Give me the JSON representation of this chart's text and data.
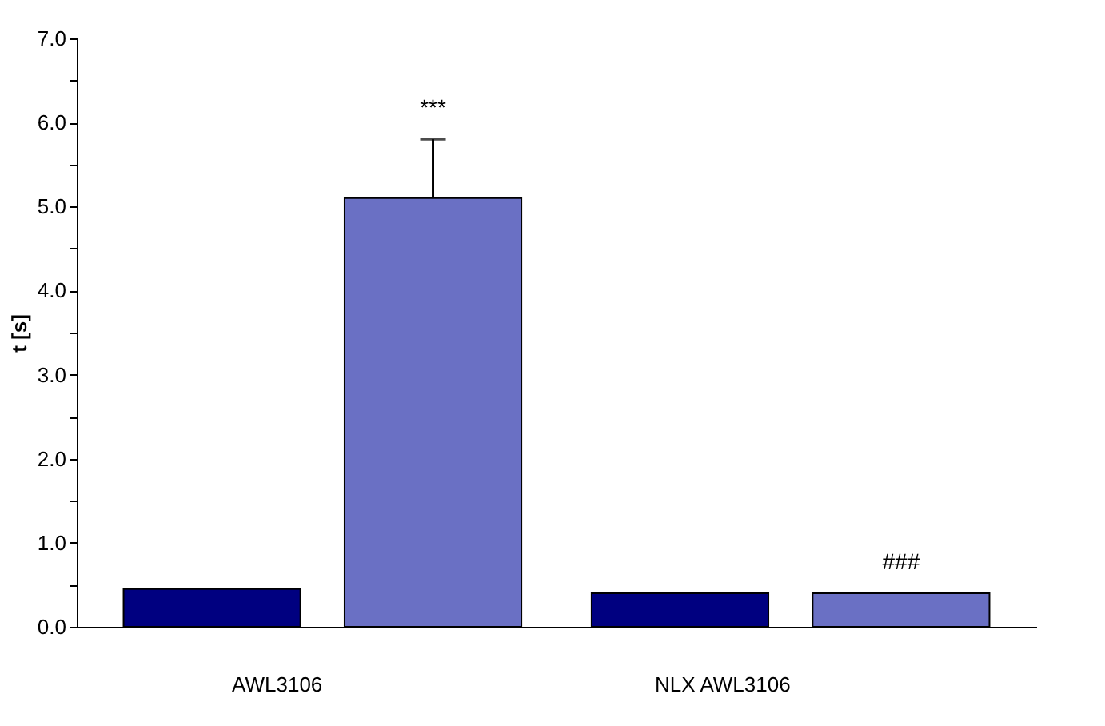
{
  "chart_data": {
    "type": "bar",
    "ylabel": "t [s]",
    "categories": [
      "AWL3106",
      "NLX AWL3106"
    ],
    "series": [
      {
        "color": "#000080",
        "values": [
          0.45,
          0.4
        ]
      },
      {
        "color": "#6a70c4",
        "values": [
          5.1,
          0.4
        ],
        "errors": [
          0.7,
          null
        ]
      }
    ],
    "ylim": [
      0,
      7
    ],
    "yticks": [
      {
        "value": 0,
        "label": "0.0"
      },
      {
        "value": 0.5,
        "label": null
      },
      {
        "value": 1,
        "label": "1.0"
      },
      {
        "value": 1.5,
        "label": null
      },
      {
        "value": 2,
        "label": "2.0"
      },
      {
        "value": 2.5,
        "label": null
      },
      {
        "value": 3,
        "label": "3.0"
      },
      {
        "value": 3.5,
        "label": null
      },
      {
        "value": 4,
        "label": "4.0"
      },
      {
        "value": 4.5,
        "label": null
      },
      {
        "value": 5,
        "label": "5.0"
      },
      {
        "value": 5.5,
        "label": null
      },
      {
        "value": 6,
        "label": "6.0"
      },
      {
        "value": 6.5,
        "label": null
      },
      {
        "value": 7,
        "label": "7.0"
      }
    ],
    "annotations": [
      "***",
      "###"
    ],
    "grid": false,
    "legend": false
  }
}
